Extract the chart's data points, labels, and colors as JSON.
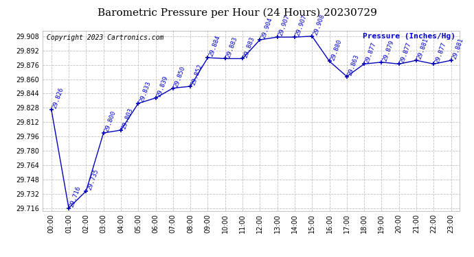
{
  "title": "Barometric Pressure per Hour (24 Hours) 20230729",
  "ylabel": "Pressure (Inches/Hg)",
  "copyright": "Copyright 2023 Cartronics.com",
  "background_color": "#ffffff",
  "line_color": "#0000bb",
  "text_color": "#0000cc",
  "hours": [
    0,
    1,
    2,
    3,
    4,
    5,
    6,
    7,
    8,
    9,
    10,
    11,
    12,
    13,
    14,
    15,
    16,
    17,
    18,
    19,
    20,
    21,
    22,
    23
  ],
  "values": [
    29.826,
    29.716,
    29.735,
    29.8,
    29.803,
    29.833,
    29.839,
    29.85,
    29.852,
    29.884,
    29.883,
    29.883,
    29.904,
    29.907,
    29.907,
    29.908,
    29.88,
    29.863,
    29.877,
    29.879,
    29.877,
    29.881,
    29.877,
    29.881
  ],
  "ylim_min": 29.716,
  "ylim_max": 29.908,
  "ytick_step": 0.016,
  "title_fontsize": 11,
  "label_fontsize": 6.5,
  "axis_fontsize": 7,
  "copyright_fontsize": 7
}
